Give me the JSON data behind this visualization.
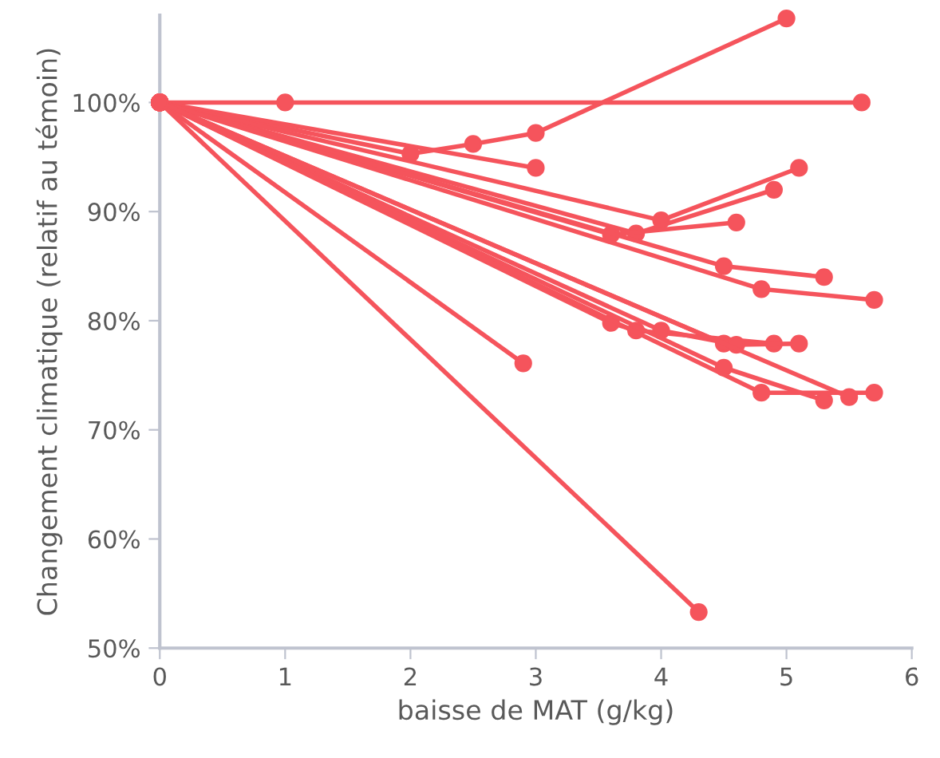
{
  "chart_data": {
    "type": "line",
    "xlabel": "baisse de MAT (g/kg)",
    "ylabel": "Changement climatique (relatif au témoin)",
    "xlim": [
      0,
      6
    ],
    "xticks": [
      0,
      1,
      2,
      3,
      4,
      5,
      6
    ],
    "ylim": [
      50,
      108
    ],
    "yticks": [
      {
        "value": 50,
        "label": "50%"
      },
      {
        "value": 60,
        "label": "60%"
      },
      {
        "value": 70,
        "label": "70%"
      },
      {
        "value": 80,
        "label": "80%"
      },
      {
        "value": 90,
        "label": "90%"
      },
      {
        "value": 100,
        "label": "100%"
      }
    ],
    "grid": false,
    "legend": false,
    "marker": "circle",
    "line_style": "solid",
    "series": [
      {
        "color": "#f5545c",
        "x": [
          0,
          1,
          5.6
        ],
        "values": [
          100,
          100,
          100
        ]
      },
      {
        "color": "#f5545c",
        "x": [
          0,
          2.0,
          2.5,
          3.0,
          5.0
        ],
        "values": [
          100,
          95.3,
          96.2,
          97.2,
          107.7
        ]
      },
      {
        "color": "#f5545c",
        "x": [
          0,
          3.0
        ],
        "values": [
          100,
          94.0
        ]
      },
      {
        "color": "#f5545c",
        "x": [
          0,
          4.0,
          5.1
        ],
        "values": [
          100,
          89.2,
          94.0
        ]
      },
      {
        "color": "#f5545c",
        "x": [
          0,
          3.8,
          4.9
        ],
        "values": [
          100,
          88.0,
          92.0
        ]
      },
      {
        "color": "#f5545c",
        "x": [
          0,
          3.6,
          4.6
        ],
        "values": [
          100,
          87.9,
          89.0
        ]
      },
      {
        "color": "#f5545c",
        "x": [
          0,
          4.5,
          5.3
        ],
        "values": [
          100,
          85.0,
          84.0
        ]
      },
      {
        "color": "#f5545c",
        "x": [
          0,
          4.8,
          5.7
        ],
        "values": [
          100,
          82.9,
          81.9
        ]
      },
      {
        "color": "#f5545c",
        "x": [
          0,
          3.6,
          3.8,
          4.9
        ],
        "values": [
          100,
          79.8,
          79.1,
          77.9
        ]
      },
      {
        "color": "#f5545c",
        "x": [
          0,
          4.5
        ],
        "values": [
          100,
          77.9
        ]
      },
      {
        "color": "#f5545c",
        "x": [
          0,
          4.0,
          4.6,
          5.1
        ],
        "values": [
          100,
          79.1,
          77.8,
          77.9
        ]
      },
      {
        "color": "#f5545c",
        "x": [
          0,
          4.5,
          5.3
        ],
        "values": [
          100,
          75.7,
          72.7
        ]
      },
      {
        "color": "#f5545c",
        "x": [
          0,
          4.8,
          5.7
        ],
        "values": [
          100,
          73.4,
          73.4
        ]
      },
      {
        "color": "#f5545c",
        "x": [
          0,
          5.5
        ],
        "values": [
          100,
          73.0
        ]
      },
      {
        "color": "#f5545c",
        "x": [
          0,
          2.9
        ],
        "values": [
          100,
          76.1
        ]
      },
      {
        "color": "#f5545c",
        "x": [
          0,
          4.3
        ],
        "values": [
          100,
          53.3
        ]
      }
    ]
  }
}
